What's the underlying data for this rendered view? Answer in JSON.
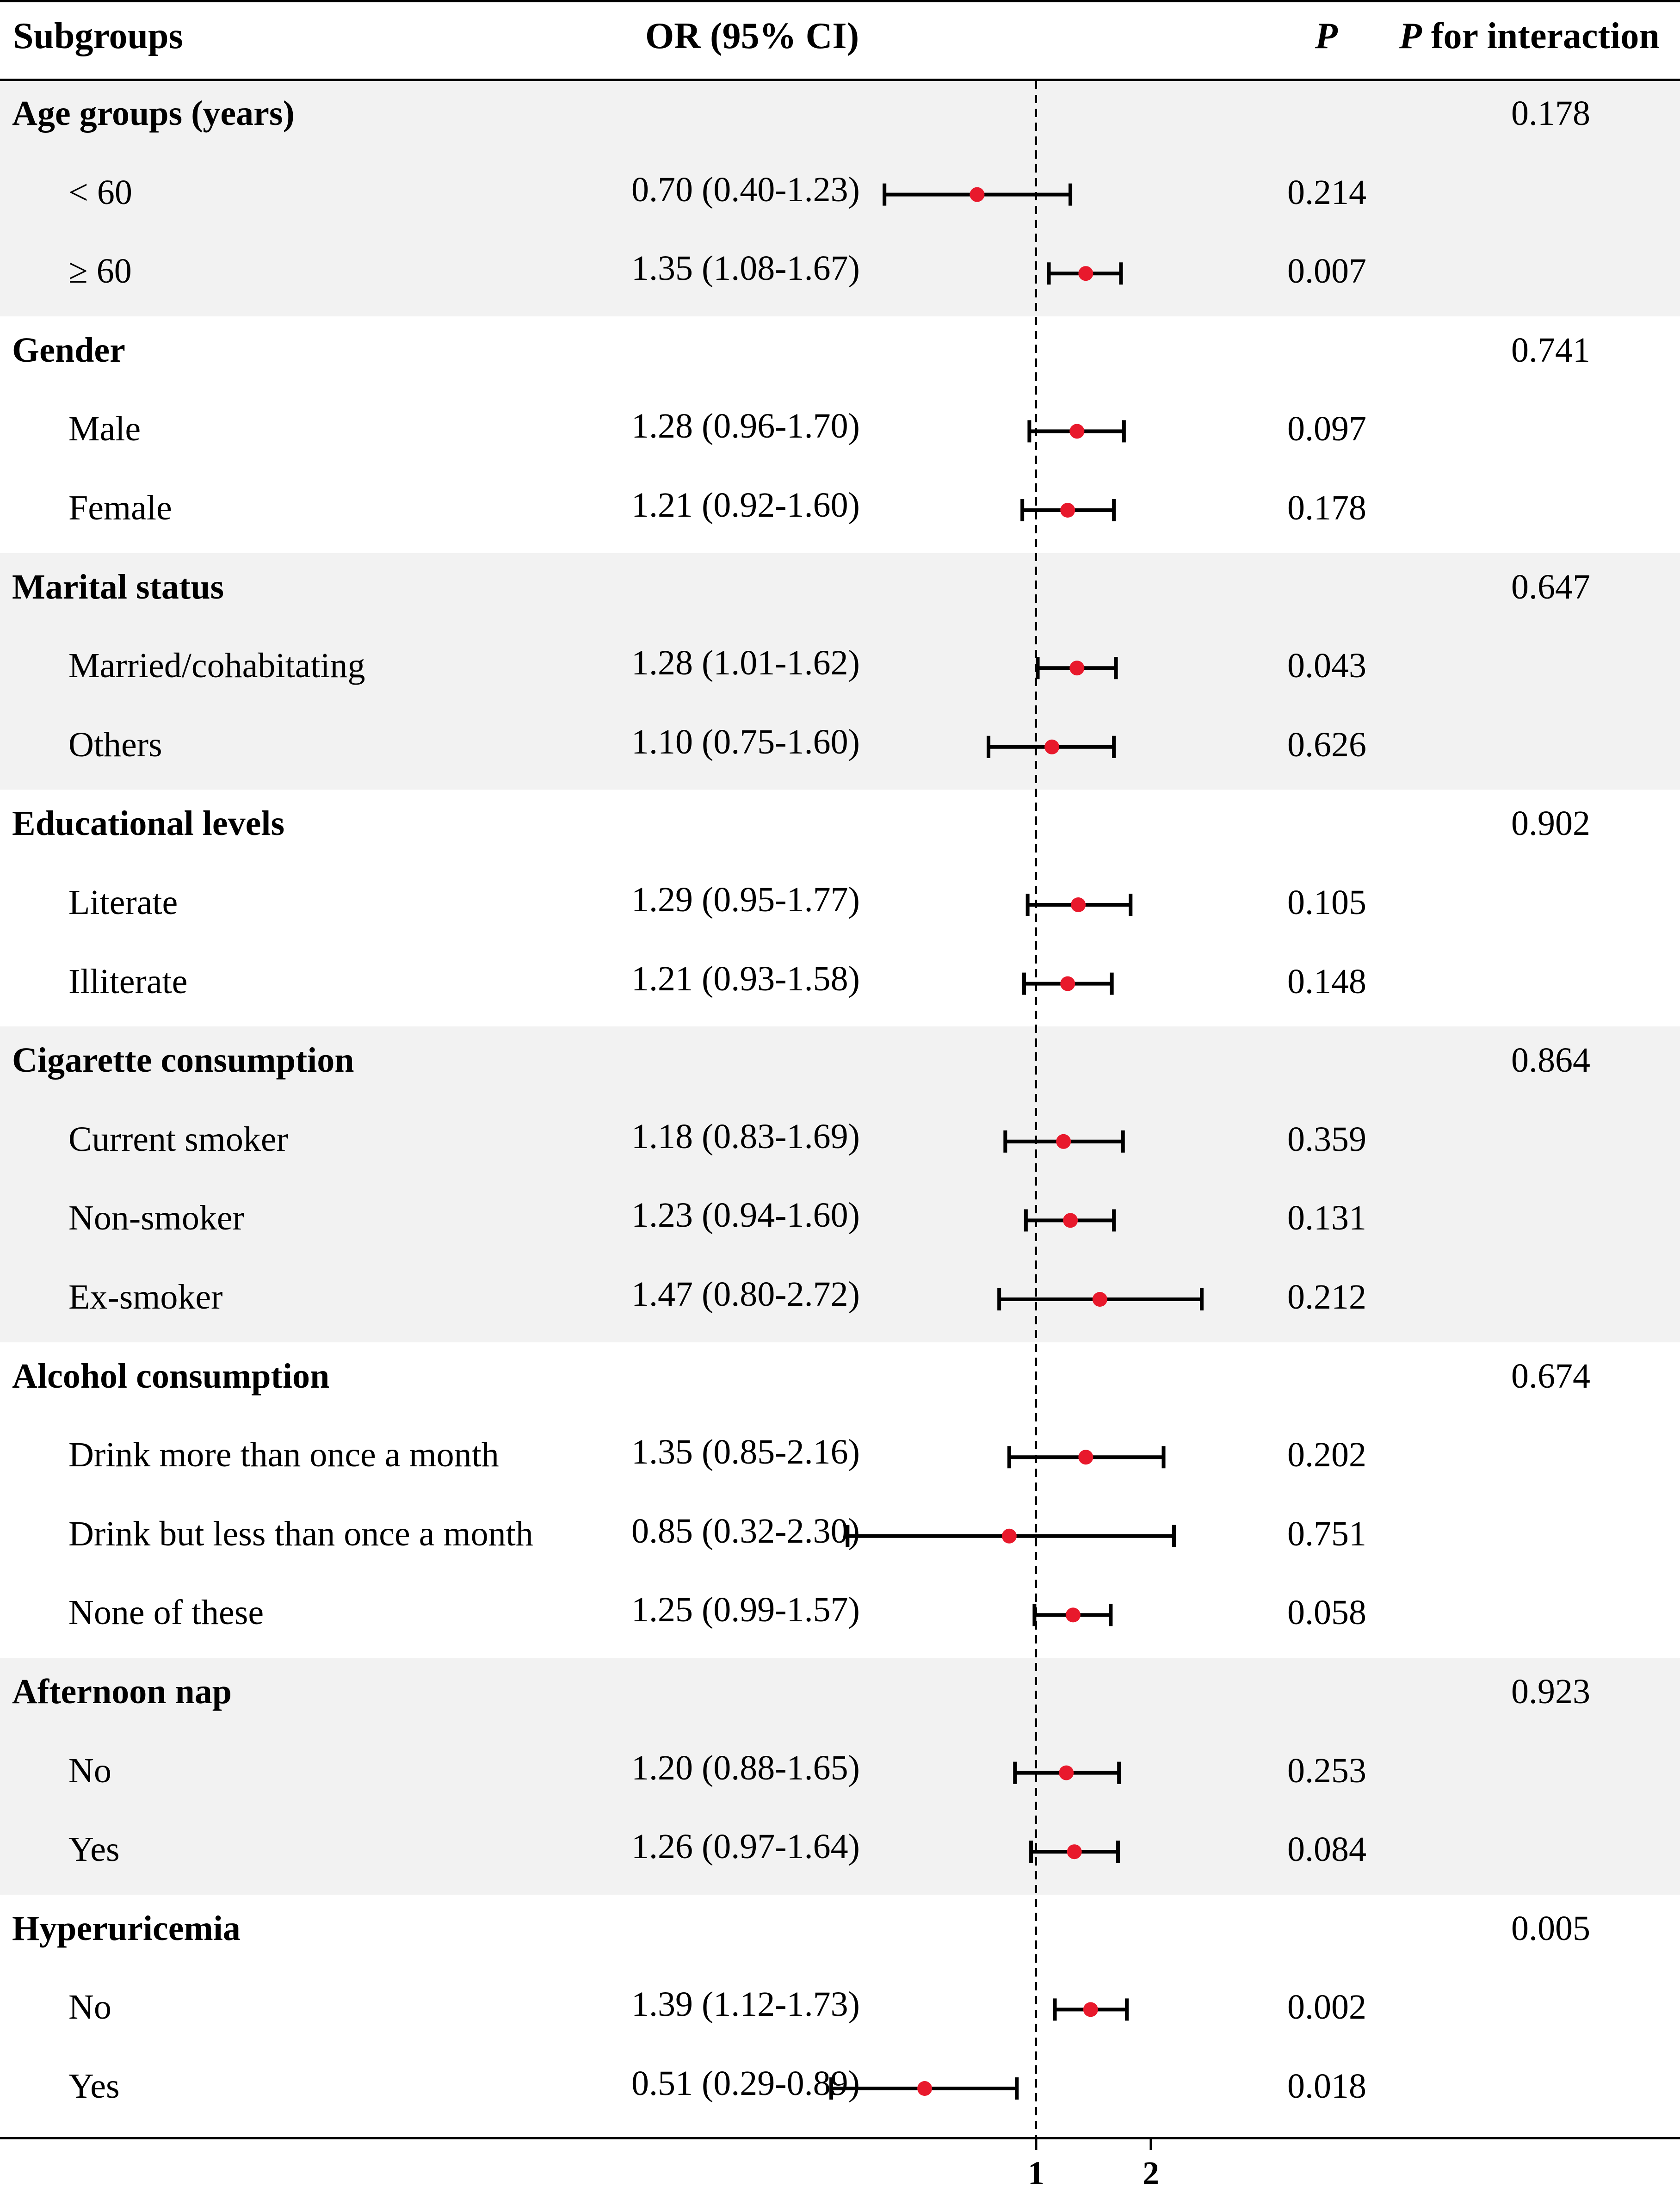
{
  "header": {
    "subgroups": "Subgroups",
    "or_ci": "OR (95% CI)",
    "p": "P",
    "p_interaction_italic": "P",
    "p_interaction_rest": " for interaction"
  },
  "rows": [
    {
      "type": "group",
      "label": "Age groups (years)",
      "p_interaction": "0.178",
      "shade": true
    },
    {
      "type": "sub",
      "label": "< 60",
      "or_text": "0.70 (0.40-1.23)",
      "p": "0.214",
      "shade": true
    },
    {
      "type": "sub",
      "label": "≥ 60",
      "or_text": "1.35 (1.08-1.67)",
      "p": "0.007",
      "shade": true
    },
    {
      "type": "group",
      "label": "Gender",
      "p_interaction": "0.741",
      "shade": false
    },
    {
      "type": "sub",
      "label": "Male",
      "or_text": "1.28 (0.96-1.70)",
      "p": "0.097",
      "shade": false
    },
    {
      "type": "sub",
      "label": "Female",
      "or_text": "1.21 (0.92-1.60)",
      "p": "0.178",
      "shade": false
    },
    {
      "type": "group",
      "label": "Marital status",
      "p_interaction": "0.647",
      "shade": true
    },
    {
      "type": "sub",
      "label": "Married/cohabitating",
      "or_text": "1.28 (1.01-1.62)",
      "p": "0.043",
      "shade": true
    },
    {
      "type": "sub",
      "label": "Others",
      "or_text": "1.10 (0.75-1.60)",
      "p": "0.626",
      "shade": true
    },
    {
      "type": "group",
      "label": "Educational levels",
      "p_interaction": "0.902",
      "shade": false
    },
    {
      "type": "sub",
      "label": "Literate",
      "or_text": "1.29 (0.95-1.77)",
      "p": "0.105",
      "shade": false
    },
    {
      "type": "sub",
      "label": "Illiterate",
      "or_text": "1.21 (0.93-1.58)",
      "p": "0.148",
      "shade": false
    },
    {
      "type": "group",
      "label": "Cigarette consumption",
      "p_interaction": "0.864",
      "shade": true
    },
    {
      "type": "sub",
      "label": "Current smoker",
      "or_text": "1.18 (0.83-1.69)",
      "p": "0.359",
      "shade": true
    },
    {
      "type": "sub",
      "label": "Non-smoker",
      "or_text": "1.23 (0.94-1.60)",
      "p": "0.131",
      "shade": true
    },
    {
      "type": "sub",
      "label": "Ex-smoker",
      "or_text": "1.47 (0.80-2.72)",
      "p": "0.212",
      "shade": true
    },
    {
      "type": "group",
      "label": "Alcohol consumption",
      "p_interaction": "0.674",
      "shade": false
    },
    {
      "type": "sub",
      "label": "Drink more than once a month",
      "or_text": "1.35 (0.85-2.16)",
      "p": "0.202",
      "shade": false
    },
    {
      "type": "sub",
      "label": "Drink but less than once a month",
      "or_text": "0.85 (0.32-2.30)",
      "p": "0.751",
      "shade": false
    },
    {
      "type": "sub",
      "label": "None of these",
      "or_text": "1.25 (0.99-1.57)",
      "p": "0.058",
      "shade": false
    },
    {
      "type": "group",
      "label": "Afternoon nap",
      "p_interaction": "0.923",
      "shade": true
    },
    {
      "type": "sub",
      "label": "No",
      "or_text": "1.20 (0.88-1.65)",
      "p": "0.253",
      "shade": true
    },
    {
      "type": "sub",
      "label": "Yes",
      "or_text": "1.26 (0.97-1.64)",
      "p": "0.084",
      "shade": true
    },
    {
      "type": "group",
      "label": "Hyperuricemia",
      "p_interaction": "0.005",
      "shade": false
    },
    {
      "type": "sub",
      "label": "No",
      "or_text": "1.39 (1.12-1.73)",
      "p": "0.002",
      "shade": false
    },
    {
      "type": "sub",
      "label": "Yes",
      "or_text": "0.51 (0.29-0.89)",
      "p": "0.018",
      "shade": false
    }
  ],
  "chart_data": {
    "type": "scatter",
    "subtype": "forest",
    "title": "",
    "xlabel": "",
    "ylabel": "",
    "reference_line": 1,
    "xticks": [
      "1",
      "2"
    ],
    "xlim": [
      0.25,
      3.0
    ],
    "x_scale": "log",
    "point_color": "#e8192c",
    "series": [
      {
        "name": "Age groups (years): < 60",
        "or": 0.7,
        "lower": 0.4,
        "upper": 1.23
      },
      {
        "name": "Age groups (years): ≥ 60",
        "or": 1.35,
        "lower": 1.08,
        "upper": 1.67
      },
      {
        "name": "Gender: Male",
        "or": 1.28,
        "lower": 0.96,
        "upper": 1.7
      },
      {
        "name": "Gender: Female",
        "or": 1.21,
        "lower": 0.92,
        "upper": 1.6
      },
      {
        "name": "Marital status: Married/cohabitating",
        "or": 1.28,
        "lower": 1.01,
        "upper": 1.62
      },
      {
        "name": "Marital status: Others",
        "or": 1.1,
        "lower": 0.75,
        "upper": 1.6
      },
      {
        "name": "Educational levels: Literate",
        "or": 1.29,
        "lower": 0.95,
        "upper": 1.77
      },
      {
        "name": "Educational levels: Illiterate",
        "or": 1.21,
        "lower": 0.93,
        "upper": 1.58
      },
      {
        "name": "Cigarette consumption: Current smoker",
        "or": 1.18,
        "lower": 0.83,
        "upper": 1.69
      },
      {
        "name": "Cigarette consumption: Non-smoker",
        "or": 1.23,
        "lower": 0.94,
        "upper": 1.6
      },
      {
        "name": "Cigarette consumption: Ex-smoker",
        "or": 1.47,
        "lower": 0.8,
        "upper": 2.72
      },
      {
        "name": "Alcohol consumption: Drink more than once a month",
        "or": 1.35,
        "lower": 0.85,
        "upper": 2.16
      },
      {
        "name": "Alcohol consumption: Drink but less than once a month",
        "or": 0.85,
        "lower": 0.32,
        "upper": 2.3
      },
      {
        "name": "Alcohol consumption: None of these",
        "or": 1.25,
        "lower": 0.99,
        "upper": 1.57
      },
      {
        "name": "Afternoon nap: No",
        "or": 1.2,
        "lower": 0.88,
        "upper": 1.65
      },
      {
        "name": "Afternoon nap: Yes",
        "or": 1.26,
        "lower": 0.97,
        "upper": 1.64
      },
      {
        "name": "Hyperuricemia: No",
        "or": 1.39,
        "lower": 1.12,
        "upper": 1.73
      },
      {
        "name": "Hyperuricemia: Yes",
        "or": 0.51,
        "lower": 0.29,
        "upper": 0.89
      }
    ]
  }
}
